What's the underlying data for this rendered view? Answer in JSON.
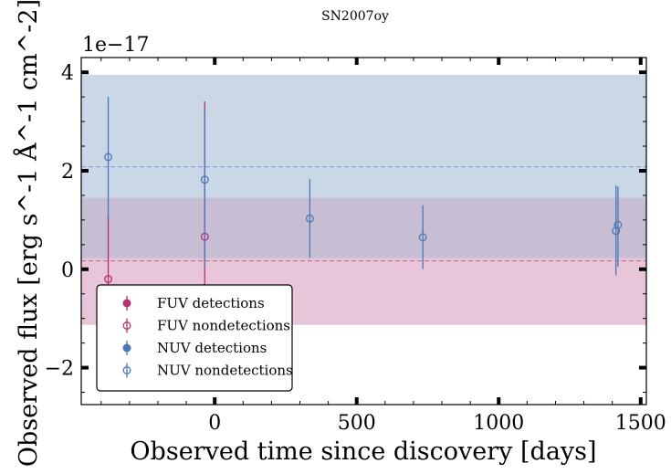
{
  "chart_data": {
    "type": "scatter",
    "title": "SN2007oy",
    "xlabel": "Observed time since discovery [days]",
    "ylabel": "Observed flux [erg s^-1 Å^-1 cm^-2]",
    "y_offset_label": "1e−17",
    "y_scale_factor": 1e-17,
    "xlim": [
      -470,
      1520
    ],
    "ylim": [
      -2.75,
      4.3
    ],
    "x_ticks": [
      0,
      500,
      1000,
      1500
    ],
    "x_tick_labels": [
      "0",
      "500",
      "1000",
      "1500"
    ],
    "y_ticks": [
      -2,
      0,
      2,
      4
    ],
    "y_tick_labels": [
      "−2",
      "0",
      "2",
      "4"
    ],
    "grid": false,
    "legend_position": "lower-left",
    "colors": {
      "fuv": "#b5306e",
      "nuv": "#4a78b5",
      "fuv_band": "#e8c5d8",
      "nuv_band": "#c9d7e6",
      "overlap_band": "#c8bed4"
    },
    "bands": [
      {
        "series": "FUV",
        "center": 0.17,
        "low": -1.13,
        "high": 1.45
      },
      {
        "series": "NUV",
        "center": 2.08,
        "low": 0.22,
        "high": 3.95
      }
    ],
    "series": [
      {
        "name": "FUV detections",
        "band": "FUV",
        "filled": true,
        "points": []
      },
      {
        "name": "FUV nondetections",
        "band": "FUV",
        "filled": false,
        "points": [
          {
            "x": -375,
            "y": -0.2,
            "err_low": 1.2,
            "err_high": 1.3
          },
          {
            "x": -35,
            "y": 0.66,
            "err_low": 1.7,
            "err_high": 2.75
          }
        ]
      },
      {
        "name": "NUV detections",
        "band": "NUV",
        "filled": true,
        "points": []
      },
      {
        "name": "NUV nondetections",
        "band": "NUV",
        "filled": false,
        "points": [
          {
            "x": -375,
            "y": 2.28,
            "err_low": 1.25,
            "err_high": 1.22
          },
          {
            "x": -35,
            "y": 1.82,
            "err_low": 1.8,
            "err_high": 1.4
          },
          {
            "x": 335,
            "y": 1.03,
            "err_low": 0.8,
            "err_high": 0.8
          },
          {
            "x": 733,
            "y": 0.65,
            "err_low": 0.65,
            "err_high": 0.65
          },
          {
            "x": 1413,
            "y": 0.78,
            "err_low": 0.9,
            "err_high": 0.92
          },
          {
            "x": 1420,
            "y": 0.9,
            "err_low": 0.85,
            "err_high": 0.78
          }
        ]
      }
    ],
    "legend": [
      {
        "label": "FUV detections",
        "band": "FUV",
        "filled": true
      },
      {
        "label": "FUV nondetections",
        "band": "FUV",
        "filled": false
      },
      {
        "label": "NUV detections",
        "band": "NUV",
        "filled": true
      },
      {
        "label": "NUV nondetections",
        "band": "NUV",
        "filled": false
      }
    ]
  }
}
